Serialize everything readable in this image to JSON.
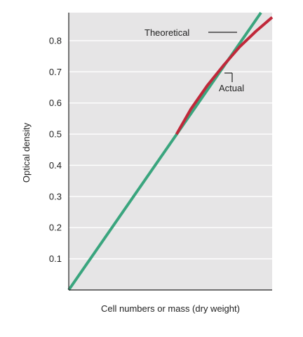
{
  "chart_data": {
    "type": "line",
    "title": "",
    "xlabel": "Cell numbers or mass (dry weight)",
    "ylabel": "Optical density",
    "xlim": [
      0,
      1
    ],
    "ylim": [
      0,
      0.89
    ],
    "yticks": [
      0.1,
      0.2,
      0.3,
      0.4,
      0.5,
      0.6,
      0.7,
      0.8
    ],
    "ytick_labels": [
      "0.1",
      "0.2",
      "0.3",
      "0.4",
      "0.5",
      "0.6",
      "0.7",
      "0.8"
    ],
    "grid": "horizontal",
    "series": [
      {
        "name": "Theoretical",
        "color": "#3aa57e",
        "x": [
          0,
          0.945
        ],
        "y": [
          0,
          0.89
        ]
      },
      {
        "name": "Actual",
        "color": "#c0283a",
        "x": [
          0.53,
          0.6,
          0.68,
          0.76,
          0.84,
          0.92,
          1.0
        ],
        "y": [
          0.5,
          0.58,
          0.655,
          0.72,
          0.78,
          0.83,
          0.875
        ]
      }
    ],
    "annotations": [
      {
        "text": "Theoretical",
        "series": "Theoretical"
      },
      {
        "text": "Actual",
        "series": "Actual"
      }
    ]
  },
  "colors": {
    "plot_background": "#e6e5e6",
    "gridline": "#ffffff",
    "frame": "#222222"
  }
}
